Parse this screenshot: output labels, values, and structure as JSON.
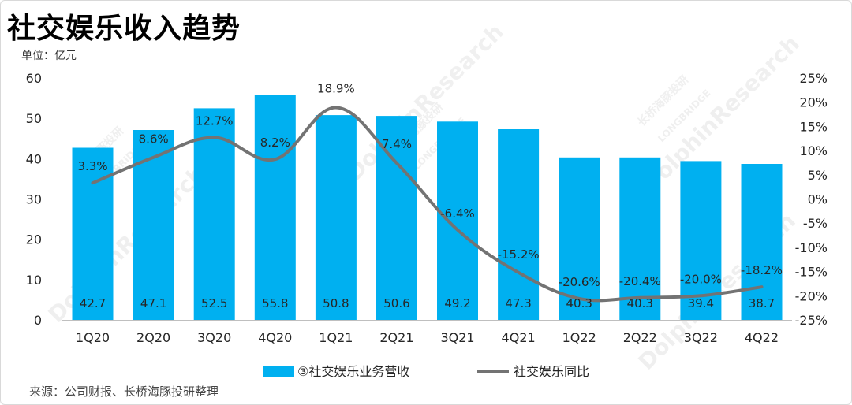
{
  "header": {
    "title": "社交娱乐收入趋势",
    "unit": "单位：亿元"
  },
  "footer": {
    "source": "来源：公司财报、长桥海豚投研整理"
  },
  "watermark": {
    "text1": "DolphinResearch",
    "text2": "长桥海豚投研",
    "text3": "LONGBRIDGE"
  },
  "colors": {
    "bar": "#00b0f0",
    "line": "#737373",
    "text": "#262626"
  },
  "chart_data": {
    "type": "bar",
    "title": "社交娱乐收入趋势",
    "categories": [
      "1Q20",
      "2Q20",
      "3Q20",
      "4Q20",
      "1Q21",
      "2Q21",
      "3Q21",
      "4Q21",
      "1Q22",
      "2Q22",
      "3Q22",
      "4Q22"
    ],
    "series": [
      {
        "name": "③社交娱乐业务营收",
        "type": "bar",
        "axis": "left",
        "values": [
          42.7,
          47.1,
          52.5,
          55.8,
          50.8,
          50.6,
          49.2,
          47.3,
          40.3,
          40.3,
          39.4,
          38.7
        ],
        "labels": [
          "42.7",
          "47.1",
          "52.5",
          "55.8",
          "50.8",
          "50.6",
          "49.2",
          "47.3",
          "40.3",
          "40.3",
          "39.4",
          "38.7"
        ]
      },
      {
        "name": "社交娱乐同比",
        "type": "line",
        "axis": "right",
        "values": [
          3.3,
          8.6,
          12.7,
          8.2,
          18.9,
          7.4,
          -6.4,
          -15.2,
          -20.6,
          -20.4,
          -20.0,
          -18.2
        ],
        "labels": [
          "3.3%",
          "8.6%",
          "12.7%",
          "8.2%",
          "18.9%",
          "7.4%",
          "-6.4%",
          "-15.2%",
          "-20.6%",
          "-20.4%",
          "-20.0%",
          "-18.2%"
        ]
      }
    ],
    "y_left": {
      "min": 0,
      "max": 60,
      "ticks": [
        0,
        10,
        20,
        30,
        40,
        50,
        60
      ],
      "tick_labels": [
        "0",
        "10",
        "20",
        "30",
        "40",
        "50",
        "60"
      ]
    },
    "y_right": {
      "min": -25,
      "max": 25,
      "ticks": [
        25,
        20,
        15,
        10,
        5,
        0,
        -5,
        -10,
        -15,
        -20,
        -25
      ],
      "tick_labels": [
        "25%",
        "20%",
        "15%",
        "10%",
        "5%",
        "0%",
        "-5%",
        "-10%",
        "-15%",
        "-20%",
        "-25%"
      ]
    },
    "legend": {
      "position": "bottom",
      "entries": [
        "③社交娱乐业务营收",
        "社交娱乐同比"
      ]
    },
    "grid": false
  }
}
